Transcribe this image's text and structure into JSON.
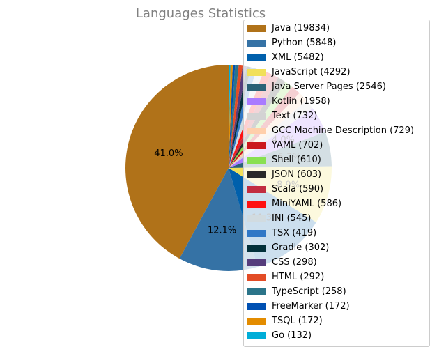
{
  "chart_data": {
    "type": "pie",
    "title": "Languages Statistics",
    "legend_placement": "right",
    "start_angle_deg": 90,
    "direction": "counterclockwise",
    "slices": [
      {
        "label": "Java (19834)",
        "name": "Java",
        "value": 19834,
        "color": "#b07219",
        "pct_label": "41.0%"
      },
      {
        "label": "Python (5848)",
        "name": "Python",
        "value": 5848,
        "color": "#3572A5",
        "pct_label": "12.1%"
      },
      {
        "label": "XML (5482)",
        "name": "XML",
        "value": 5482,
        "color": "#0060ac",
        "pct_label": "11.3%"
      },
      {
        "label": "JavaScript (4292)",
        "name": "JavaScript",
        "value": 4292,
        "color": "#f1e05a",
        "pct_label": "8.9%"
      },
      {
        "label": "Java Server Pages (2546)",
        "name": "Java Server Pages",
        "value": 2546,
        "color": "#2A6277",
        "pct_label": "5.3%"
      },
      {
        "label": "Kotlin (1958)",
        "name": "Kotlin",
        "value": 1958,
        "color": "#A97BFF",
        "pct_label": "4.0%"
      },
      {
        "label": "Text (732)",
        "name": "Text",
        "value": 732,
        "color": "#d3d3d3",
        "pct_label": ""
      },
      {
        "label": "GCC Machine Description (729)",
        "name": "GCC Machine Description",
        "value": 729,
        "color": "#FFCFAB",
        "pct_label": ""
      },
      {
        "label": "YAML (702)",
        "name": "YAML",
        "value": 702,
        "color": "#cb171e",
        "pct_label": ""
      },
      {
        "label": "Shell (610)",
        "name": "Shell",
        "value": 610,
        "color": "#89e051",
        "pct_label": ""
      },
      {
        "label": "JSON (603)",
        "name": "JSON",
        "value": 603,
        "color": "#292929",
        "pct_label": ""
      },
      {
        "label": "Scala (590)",
        "name": "Scala",
        "value": 590,
        "color": "#c22d40",
        "pct_label": ""
      },
      {
        "label": "MiniYAML (586)",
        "name": "MiniYAML",
        "value": 586,
        "color": "#ff1111",
        "pct_label": ""
      },
      {
        "label": "INI (545)",
        "name": "INI",
        "value": 545,
        "color": "#d1dbe0",
        "pct_label": ""
      },
      {
        "label": "TSX (419)",
        "name": "TSX",
        "value": 419,
        "color": "#3178c6",
        "pct_label": ""
      },
      {
        "label": "Gradle (302)",
        "name": "Gradle",
        "value": 302,
        "color": "#02303a",
        "pct_label": ""
      },
      {
        "label": "CSS (298)",
        "name": "CSS",
        "value": 298,
        "color": "#563d7c",
        "pct_label": ""
      },
      {
        "label": "HTML (292)",
        "name": "HTML",
        "value": 292,
        "color": "#e34c26",
        "pct_label": ""
      },
      {
        "label": "TypeScript (258)",
        "name": "TypeScript",
        "value": 258,
        "color": "#2b7489",
        "pct_label": ""
      },
      {
        "label": "FreeMarker (172)",
        "name": "FreeMarker",
        "value": 172,
        "color": "#0050b2",
        "pct_label": ""
      },
      {
        "label": "TSQL (172)",
        "name": "TSQL",
        "value": 172,
        "color": "#e38c00",
        "pct_label": ""
      },
      {
        "label": "Go (132)",
        "name": "Go",
        "value": 132,
        "color": "#00ADD8",
        "pct_label": ""
      }
    ]
  }
}
